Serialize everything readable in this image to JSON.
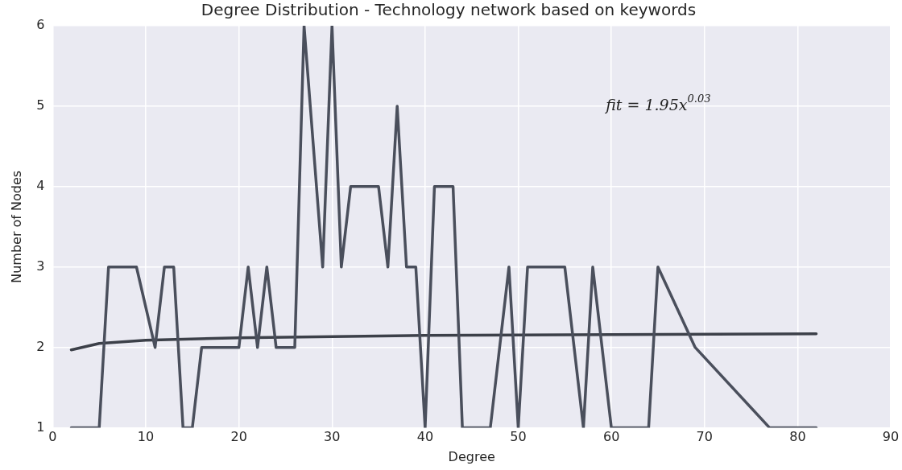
{
  "chart_data": {
    "type": "line",
    "title": "Degree Distribution - Technology network based on keywords",
    "xlabel": "Degree",
    "ylabel": "Number of Nodes",
    "series": [
      {
        "color": "#4a4f5c",
        "x": [
          2,
          5,
          6,
          9,
          11,
          12,
          13,
          14,
          15,
          16,
          20,
          21,
          22,
          23,
          24,
          26,
          27,
          29,
          30,
          31,
          32,
          35,
          36,
          37,
          38,
          39,
          40,
          41,
          43,
          44,
          47,
          49,
          50,
          51,
          55,
          57,
          58,
          60,
          64,
          65,
          69,
          77,
          82
        ],
        "values": [
          1,
          1,
          3,
          3,
          2,
          3,
          3,
          1,
          1,
          2,
          2,
          3,
          2,
          3,
          2,
          2,
          6,
          3,
          6,
          3,
          4,
          4,
          3,
          5,
          3,
          3,
          1,
          4,
          4,
          1,
          1,
          3,
          1,
          3,
          3,
          1,
          3,
          1,
          1,
          3,
          2,
          1,
          1
        ]
      },
      {
        "color": "#3c4049",
        "x": [
          2,
          5,
          10,
          20,
          40,
          60,
          82
        ],
        "values": [
          1.97,
          2.05,
          2.09,
          2.12,
          2.15,
          2.16,
          2.17
        ]
      }
    ],
    "xlim": [
      0,
      90
    ],
    "xticks": [
      0,
      10,
      20,
      30,
      40,
      50,
      60,
      70,
      80,
      90
    ],
    "ylim": [
      1,
      6
    ],
    "yticks": [
      1,
      2,
      3,
      4,
      5,
      6
    ],
    "grid": true,
    "legend": false,
    "marker": "none",
    "line_style": "solid",
    "annotations": [
      "fit = 1.95x$^{0.03}$"
    ]
  }
}
